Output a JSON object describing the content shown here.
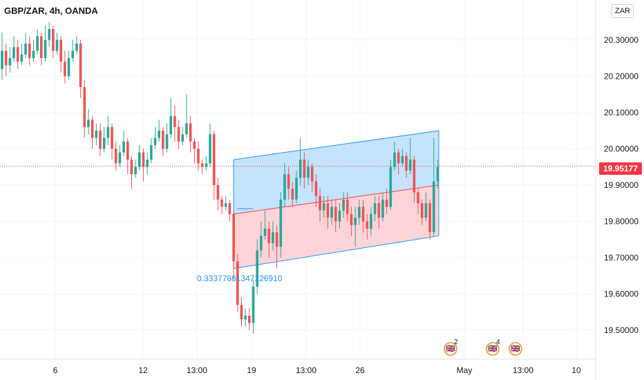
{
  "header": {
    "symbol": "GBP/ZAR, 4h, OANDA",
    "currency": "ZAR"
  },
  "price_scale": {
    "ticks": [
      "19.50000",
      "19.60000",
      "19.70000",
      "19.80000",
      "19.90000",
      "20.00000",
      "20.10000",
      "20.20000",
      "20.30000"
    ],
    "current_price": "19.95177",
    "current_price_value": 19.95177
  },
  "chart_data": {
    "type": "candlestick",
    "symbol": "GBP/ZAR",
    "interval": "4h",
    "source": "OANDA",
    "title": "GBP/ZAR, 4h, OANDA",
    "ylim": [
      19.42,
      20.41
    ],
    "x_tick_labels": [
      "6",
      "12",
      "13:00",
      "19",
      "13:00",
      "26",
      "May",
      "13:00",
      "10"
    ],
    "current_price": 19.95177,
    "colors": {
      "up": "#26a69a",
      "down": "#ef5350",
      "price_line": "#f23645",
      "channel_line": "#2196f3",
      "channel_upper_fill": "#bbdefb",
      "channel_lower_fill": "#ffcdd2",
      "channel_mid_line": "#f44336"
    },
    "candles": [
      [
        20.22,
        20.27,
        20.32,
        20.19
      ],
      [
        20.27,
        20.23,
        20.29,
        20.2
      ],
      [
        20.23,
        20.25,
        20.28,
        20.21
      ],
      [
        20.25,
        20.28,
        20.31,
        20.24
      ],
      [
        20.28,
        20.24,
        20.3,
        20.22
      ],
      [
        20.24,
        20.26,
        20.29,
        20.23
      ],
      [
        20.26,
        20.29,
        20.32,
        20.25
      ],
      [
        20.29,
        20.25,
        20.31,
        20.23
      ],
      [
        20.25,
        20.27,
        20.3,
        20.24
      ],
      [
        20.27,
        20.31,
        20.33,
        20.26
      ],
      [
        20.31,
        20.25,
        20.32,
        20.23
      ],
      [
        20.25,
        20.3,
        20.34,
        20.24
      ],
      [
        20.3,
        20.33,
        20.35,
        20.28
      ],
      [
        20.33,
        20.27,
        20.34,
        20.25
      ],
      [
        20.27,
        20.3,
        20.32,
        20.26
      ],
      [
        20.3,
        20.24,
        20.31,
        20.21
      ],
      [
        20.24,
        20.2,
        20.27,
        20.18
      ],
      [
        20.2,
        20.25,
        20.27,
        20.19
      ],
      [
        20.25,
        20.27,
        20.3,
        20.24
      ],
      [
        20.27,
        20.29,
        20.31,
        20.26
      ],
      [
        20.29,
        20.17,
        20.3,
        20.14
      ],
      [
        20.17,
        20.06,
        20.19,
        20.03
      ],
      [
        20.06,
        20.08,
        20.11,
        20.04
      ],
      [
        20.08,
        20.03,
        20.09,
        20.0
      ],
      [
        20.03,
        20.05,
        20.07,
        20.01
      ],
      [
        20.05,
        20.0,
        20.07,
        19.98
      ],
      [
        20.0,
        20.03,
        20.06,
        19.99
      ],
      [
        20.03,
        20.06,
        20.09,
        20.01
      ],
      [
        20.06,
        20.0,
        20.07,
        19.97
      ],
      [
        20.0,
        19.96,
        20.02,
        19.94
      ],
      [
        19.96,
        19.99,
        20.01,
        19.95
      ],
      [
        19.99,
        20.02,
        20.05,
        19.98
      ],
      [
        20.02,
        19.97,
        20.03,
        19.93
      ],
      [
        19.97,
        19.93,
        19.98,
        19.89
      ],
      [
        19.93,
        19.95,
        19.97,
        19.92
      ],
      [
        19.95,
        19.99,
        20.01,
        19.94
      ],
      [
        19.99,
        19.95,
        20.0,
        19.91
      ],
      [
        19.95,
        19.97,
        19.99,
        19.93
      ],
      [
        19.97,
        20.01,
        20.03,
        19.96
      ],
      [
        20.01,
        20.03,
        20.06,
        20.0
      ],
      [
        20.03,
        20.05,
        20.08,
        20.02
      ],
      [
        20.05,
        20.0,
        20.06,
        19.98
      ],
      [
        20.0,
        20.04,
        20.07,
        19.99
      ],
      [
        20.04,
        20.09,
        20.14,
        20.03
      ],
      [
        20.09,
        20.06,
        20.12,
        20.02
      ],
      [
        20.06,
        20.02,
        20.08,
        20.0
      ],
      [
        20.02,
        20.04,
        20.06,
        20.01
      ],
      [
        20.04,
        20.07,
        20.15,
        20.03
      ],
      [
        20.07,
        20.02,
        20.09,
        19.99
      ],
      [
        20.02,
        20.0,
        20.03,
        19.96
      ],
      [
        20.0,
        19.96,
        20.02,
        19.94
      ],
      [
        19.96,
        19.95,
        19.97,
        19.93
      ],
      [
        19.95,
        19.96,
        19.98,
        19.94
      ],
      [
        19.96,
        20.04,
        20.07,
        19.95
      ],
      [
        20.04,
        19.9,
        20.05,
        19.86
      ],
      [
        19.9,
        19.86,
        19.92,
        19.83
      ],
      [
        19.86,
        19.84,
        19.87,
        19.82
      ],
      [
        19.84,
        19.85,
        19.87,
        19.83
      ],
      [
        19.85,
        19.82,
        19.86,
        19.8
      ],
      [
        19.82,
        19.69,
        19.83,
        19.64
      ],
      [
        19.69,
        19.57,
        19.71,
        19.55
      ],
      [
        19.57,
        19.53,
        19.59,
        19.51
      ],
      [
        19.53,
        19.54,
        19.56,
        19.51
      ],
      [
        19.54,
        19.52,
        19.56,
        19.5
      ],
      [
        19.52,
        19.62,
        19.64,
        19.49
      ],
      [
        19.62,
        19.72,
        19.75,
        19.6
      ],
      [
        19.72,
        19.76,
        19.8,
        19.7
      ],
      [
        19.76,
        19.78,
        19.83,
        19.75
      ],
      [
        19.78,
        19.74,
        19.8,
        19.7
      ],
      [
        19.74,
        19.77,
        19.8,
        19.72
      ],
      [
        19.77,
        19.73,
        19.79,
        19.67
      ],
      [
        19.73,
        19.86,
        19.88,
        19.7
      ],
      [
        19.86,
        19.93,
        19.96,
        19.84
      ],
      [
        19.93,
        19.89,
        19.95,
        19.86
      ],
      [
        19.89,
        19.86,
        19.91,
        19.84
      ],
      [
        19.86,
        19.92,
        19.94,
        19.85
      ],
      [
        19.92,
        19.97,
        20.03,
        19.9
      ],
      [
        19.97,
        19.92,
        19.99,
        19.89
      ],
      [
        19.92,
        19.95,
        19.97,
        19.9
      ],
      [
        19.95,
        19.91,
        19.96,
        19.88
      ],
      [
        19.91,
        19.87,
        19.93,
        19.84
      ],
      [
        19.87,
        19.83,
        19.89,
        19.8
      ],
      [
        19.83,
        19.85,
        19.87,
        19.81
      ],
      [
        19.85,
        19.81,
        19.87,
        19.78
      ],
      [
        19.81,
        19.84,
        19.86,
        19.79
      ],
      [
        19.84,
        19.8,
        19.86,
        19.77
      ],
      [
        19.8,
        19.83,
        19.85,
        19.78
      ],
      [
        19.83,
        19.86,
        19.88,
        19.81
      ],
      [
        19.86,
        19.82,
        19.88,
        19.8
      ],
      [
        19.82,
        19.79,
        19.84,
        19.76
      ],
      [
        19.79,
        19.81,
        19.84,
        19.73
      ],
      [
        19.81,
        19.84,
        19.86,
        19.79
      ],
      [
        19.84,
        19.8,
        19.86,
        19.77
      ],
      [
        19.8,
        19.78,
        19.82,
        19.75
      ],
      [
        19.78,
        19.82,
        19.84,
        19.76
      ],
      [
        19.82,
        19.85,
        19.87,
        19.8
      ],
      [
        19.85,
        19.81,
        19.87,
        19.78
      ],
      [
        19.81,
        19.86,
        19.88,
        19.8
      ],
      [
        19.86,
        19.84,
        19.89,
        19.82
      ],
      [
        19.84,
        19.95,
        19.97,
        19.83
      ],
      [
        19.95,
        19.99,
        20.02,
        19.94
      ],
      [
        19.99,
        19.96,
        20.0,
        19.93
      ],
      [
        19.96,
        19.98,
        20.0,
        19.95
      ],
      [
        19.98,
        19.94,
        19.99,
        19.92
      ],
      [
        19.94,
        19.97,
        20.03,
        19.93
      ],
      [
        19.97,
        19.88,
        19.98,
        19.85
      ],
      [
        19.88,
        19.85,
        19.89,
        19.82
      ],
      [
        19.85,
        19.81,
        19.86,
        19.79
      ],
      [
        19.81,
        19.85,
        19.88,
        19.8
      ],
      [
        19.85,
        19.77,
        19.86,
        19.75
      ],
      [
        19.77,
        19.91,
        20.03,
        19.76
      ],
      [
        19.91,
        19.95,
        19.97,
        19.89
      ]
    ],
    "channel": {
      "upper": [
        [
          19.97,
          20.05
        ]
      ],
      "middle": [
        [
          19.82,
          19.9
        ]
      ],
      "lower": [
        [
          19.67,
          19.76
        ]
      ],
      "label": "0.33377881347126910"
    }
  },
  "events": [
    {
      "count": "2"
    },
    {
      "count": "4"
    },
    {
      "count": ""
    }
  ]
}
